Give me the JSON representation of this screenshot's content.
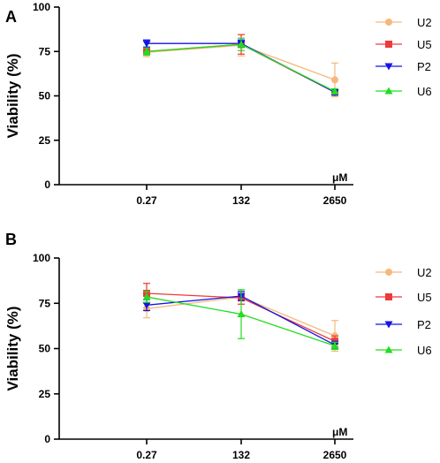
{
  "chart_data": [
    {
      "panel": "A",
      "type": "line",
      "ylabel": "Viability (%)",
      "unit": "μM",
      "ylim": [
        0,
        100
      ],
      "yticks": [
        0,
        25,
        50,
        75,
        100
      ],
      "categories": [
        "0.27",
        "132",
        "2650"
      ],
      "series": [
        {
          "name": "U2",
          "color": "#F5B97C",
          "marker": "circle",
          "values": [
            74.5,
            78.5,
            59
          ],
          "errors": [
            2.5,
            6,
            9.5
          ]
        },
        {
          "name": "U5",
          "color": "#EE3A3A",
          "marker": "square",
          "values": [
            75,
            79,
            52
          ],
          "errors": [
            2,
            5.5,
            1.5
          ]
        },
        {
          "name": "P2",
          "color": "#1414E6",
          "marker": "triangle-down",
          "values": [
            79.5,
            79.5,
            52
          ],
          "errors": [
            2,
            2,
            1.5
          ]
        },
        {
          "name": "U6",
          "color": "#22DD22",
          "marker": "triangle-up",
          "values": [
            75,
            79,
            52.5
          ],
          "errors": [
            2,
            3.5,
            1.5
          ]
        }
      ]
    },
    {
      "panel": "B",
      "type": "line",
      "ylabel": "Viability (%)",
      "unit": "μM",
      "ylim": [
        0,
        100
      ],
      "yticks": [
        0,
        25,
        50,
        75,
        100
      ],
      "categories": [
        "0.27",
        "132",
        "2650"
      ],
      "series": [
        {
          "name": "U2",
          "color": "#F5B97C",
          "marker": "circle",
          "values": [
            72,
            78.5,
            57
          ],
          "errors": [
            5,
            4,
            8.5
          ]
        },
        {
          "name": "U5",
          "color": "#EE3A3A",
          "marker": "square",
          "values": [
            80.5,
            78,
            54
          ],
          "errors": [
            5.5,
            3.5,
            3
          ]
        },
        {
          "name": "P2",
          "color": "#1414E6",
          "marker": "triangle-down",
          "values": [
            74,
            79,
            52
          ],
          "errors": [
            3,
            2.5,
            2
          ]
        },
        {
          "name": "U6",
          "color": "#22DD22",
          "marker": "triangle-up",
          "values": [
            78.5,
            69,
            51.5
          ],
          "errors": [
            3,
            13.5,
            2
          ]
        }
      ]
    }
  ]
}
